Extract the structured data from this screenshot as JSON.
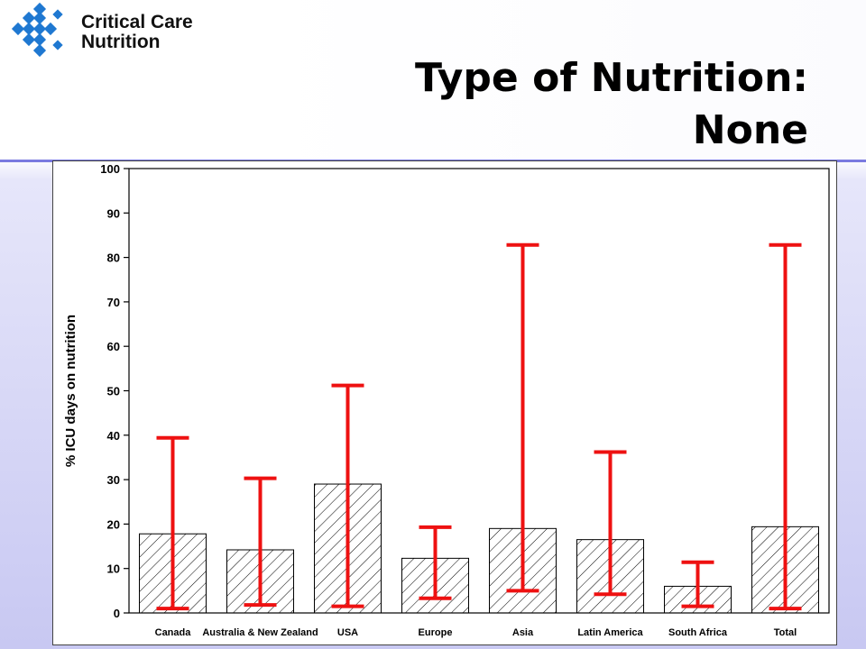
{
  "logo": {
    "text_line1": "Critical Care",
    "text_line2": "Nutrition",
    "mark_color": "#1f78d1",
    "mark_icon": "diamond-cluster-icon"
  },
  "slide": {
    "title_line1": "Type of Nutrition:",
    "title_line2": "None",
    "accent_rule_color": "#7a7ae0"
  },
  "chart_data": {
    "type": "bar",
    "title": "",
    "xlabel": "",
    "ylabel": "% ICU days on nutrition",
    "ylim": [
      0,
      100
    ],
    "yticks": [
      0,
      10,
      20,
      30,
      40,
      50,
      60,
      70,
      80,
      90,
      100
    ],
    "categories": [
      "Canada",
      "Australia & New Zealand",
      "USA",
      "Europe",
      "Asia",
      "Latin America",
      "South Africa",
      "Total"
    ],
    "series": [
      {
        "values": [
          17.8,
          14.2,
          29.0,
          12.3,
          19.0,
          16.5,
          6.0,
          19.4
        ],
        "fill": "diagonal-hatch",
        "bar_color": "#000000"
      }
    ],
    "ranges": {
      "low": [
        1.0,
        1.8,
        1.5,
        3.3,
        5.0,
        4.2,
        1.5,
        1.0
      ],
      "high": [
        39.4,
        30.3,
        51.2,
        19.3,
        82.8,
        36.2,
        11.4,
        82.8
      ],
      "color": "#ee1111"
    },
    "grid": false,
    "legend": "none"
  }
}
